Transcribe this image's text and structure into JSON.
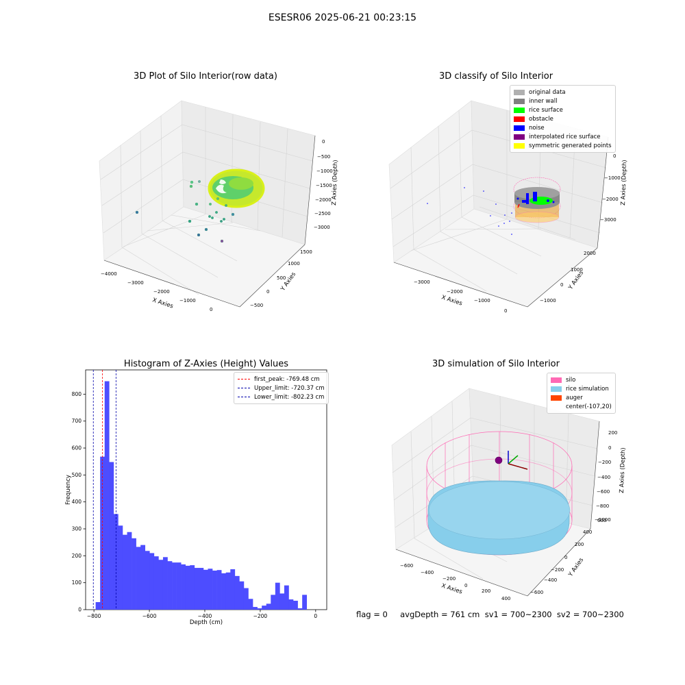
{
  "suptitle": "ESESR06 2025-06-21 00:23:15",
  "colors": {
    "pane": "#f2f2f2",
    "grid": "#d3d3d3",
    "original": "#b0b0b0",
    "inner_wall": "#808080",
    "rice_surface": "#00ff00",
    "obstacle": "#ff0000",
    "noise": "#0000ff",
    "interpolated": "#800080",
    "symmetric": "#ffff00",
    "silo": "#ff69b4",
    "rice_sim": "#87ceeb",
    "auger": "#ff4500",
    "hist": "#4d4dff",
    "peak": "#ff0000",
    "limit": "#0000aa"
  },
  "chart_data": [
    {
      "type": "scatter",
      "title": "3D Plot of Silo Interior(row data)",
      "xlabel": "X Axies",
      "ylabel": "Y Axies",
      "zlabel": "Z Axies (Depth)",
      "x_ticks": [
        "−4000",
        "−3000",
        "−2000",
        "−1000",
        "0"
      ],
      "y_ticks": [
        "−500",
        "0",
        "500",
        "1000",
        "1500"
      ],
      "z_ticks": [
        "−3000",
        "−2500",
        "−2000",
        "−1500",
        "−1000",
        "−500",
        "0"
      ]
    },
    {
      "type": "scatter",
      "title": "3D classify of Silo Interior",
      "xlabel": "X Axies",
      "ylabel": "Y Axies",
      "zlabel": "Z Axies (Depth)",
      "x_ticks": [
        "−3000",
        "−2000",
        "−1000",
        "0"
      ],
      "y_ticks": [
        "−1000",
        "0",
        "1000",
        "2000"
      ],
      "z_ticks": [
        "−3000",
        "−2000",
        "−1000",
        "0"
      ],
      "legend": [
        "original data",
        "inner wall",
        "rice surface",
        "obstacle",
        "noise",
        "interpolated rice surface",
        "symmetric generated points"
      ],
      "legend_placement": "upper-right"
    },
    {
      "type": "bar",
      "title": "Histogram of Z-Axies (Height) Values",
      "xlabel": "Depth (cm)",
      "ylabel": "Frequency",
      "bin_start": -810,
      "bin_width": 16.2,
      "values": [
        0,
        28,
        568,
        848,
        548,
        355,
        312,
        278,
        288,
        265,
        233,
        240,
        218,
        210,
        198,
        185,
        195,
        180,
        175,
        175,
        168,
        163,
        165,
        155,
        155,
        148,
        152,
        145,
        147,
        135,
        138,
        150,
        125,
        105,
        80,
        40,
        10,
        5,
        15,
        22,
        55,
        100,
        60,
        90,
        38,
        33,
        5,
        55
      ],
      "xlim": [
        -830,
        40
      ],
      "ylim": [
        0,
        890
      ],
      "x_ticks": [
        -800,
        -600,
        -400,
        -200,
        0
      ],
      "y_ticks": [
        0,
        100,
        200,
        300,
        400,
        500,
        600,
        700,
        800
      ],
      "vlines": [
        {
          "label": "first_peak: -769.48 cm",
          "x": -769.48,
          "color": "#ff0000"
        },
        {
          "label": "Upper_limit: -720.37 cm",
          "x": -720.37,
          "color": "#0000aa"
        },
        {
          "label": "Lower_limit: -802.23 cm",
          "x": -802.23,
          "color": "#0000aa"
        }
      ],
      "legend_placement": "upper-right"
    },
    {
      "type": "scatter",
      "title": "3D simulation of Silo Interior",
      "xlabel": "X Axies",
      "ylabel": "Y Axies",
      "zlabel": "Z Axies (Depth)",
      "x_ticks": [
        "−600",
        "−400",
        "−200",
        "0",
        "200",
        "400"
      ],
      "y_ticks": [
        "−600",
        "−400",
        "−200",
        "0",
        "200",
        "400",
        "600"
      ],
      "z_ticks": [
        "−1000",
        "−800",
        "−600",
        "−400",
        "−200",
        "0",
        "200"
      ],
      "legend": [
        "silo",
        "rice simulation",
        "auger",
        "center(-107,20)"
      ],
      "legend_placement": "upper-right"
    }
  ],
  "footer": "flag = 0     avgDepth = 761 cm  sv1 = 700~2300  sv2 = 700~2300"
}
